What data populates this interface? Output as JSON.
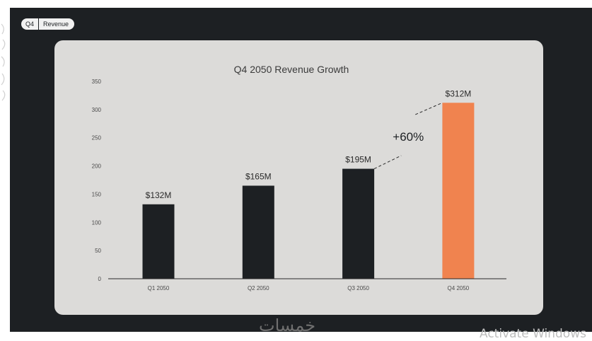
{
  "tag": {
    "left": "Q4",
    "right": "Revenue"
  },
  "watermark": "خمسات",
  "activate_text": "Activate Windows",
  "colors": {
    "bar": "#1d2023",
    "highlight": "#f0834f",
    "background": "#dcdbd9"
  },
  "chart_data": {
    "type": "bar",
    "title": "Q4 2050 Revenue Growth",
    "categories": [
      "Q1 2050",
      "Q2 2050",
      "Q3 2050",
      "Q4 2050"
    ],
    "values": [
      132,
      165,
      195,
      312
    ],
    "value_labels": [
      "$132M",
      "$165M",
      "$195M",
      "$312M"
    ],
    "highlight_index": 3,
    "ylim": [
      0,
      350
    ],
    "yticks": [
      0,
      50,
      100,
      150,
      200,
      250,
      300,
      350
    ],
    "grid": false,
    "annotation": {
      "text": "+60%",
      "from_index": 2,
      "to_index": 3
    }
  }
}
